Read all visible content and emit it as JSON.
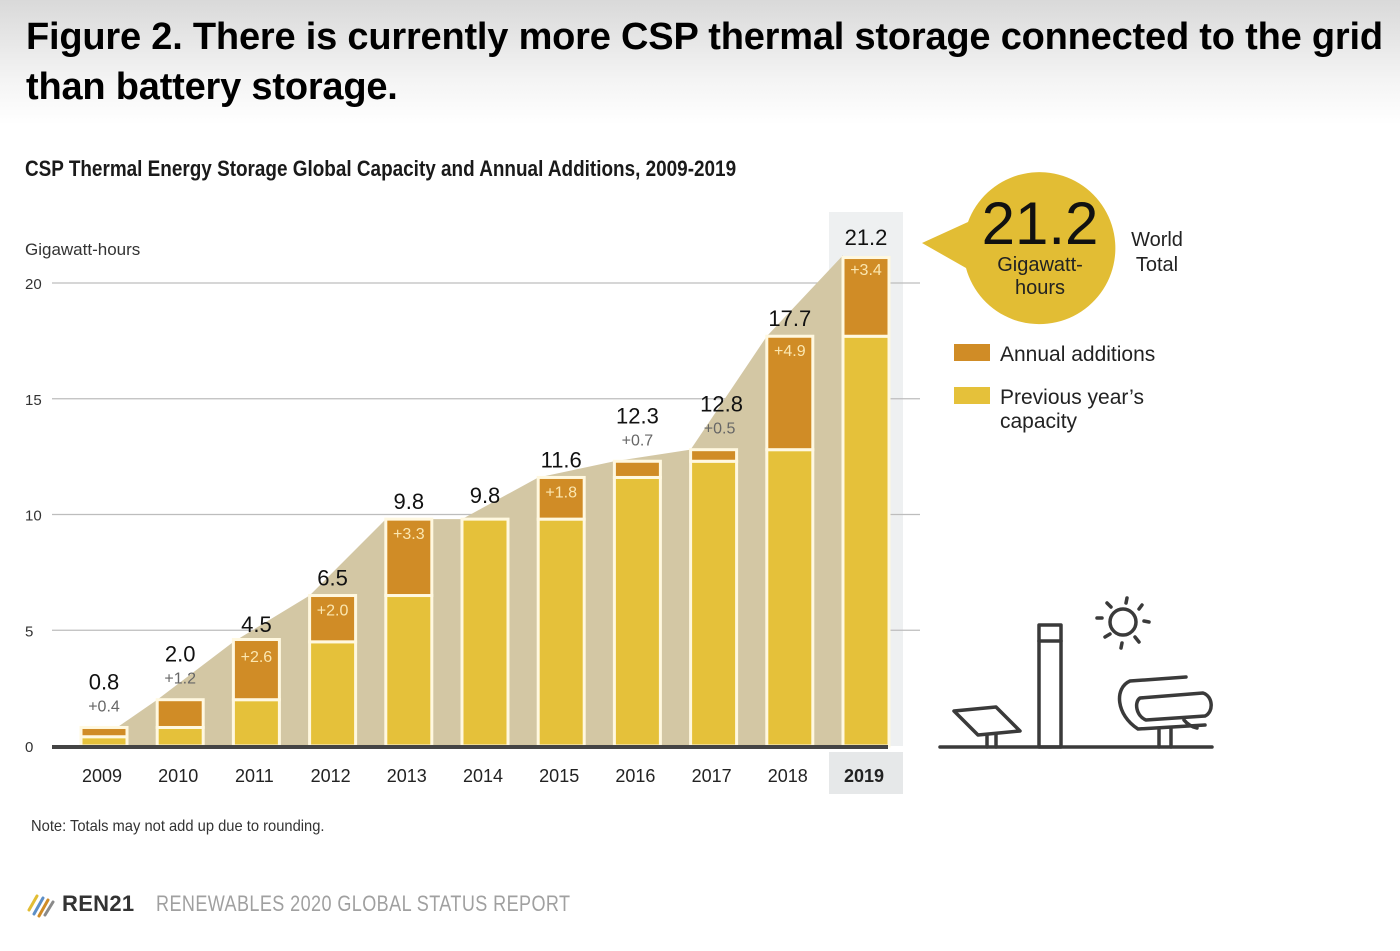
{
  "figure_title": "Figure 2. There is currently more CSP thermal storage connected to the grid than battery storage.",
  "note": "Note: Totals may not add up due to rounding.",
  "footer": {
    "logo_icon": "ren21-stripes-logo-icon",
    "brand": "REN21",
    "report": "RENEWABLES 2020 GLOBAL STATUS REPORT"
  },
  "callout": {
    "value": "21.2",
    "unit_line1": "Gigawatt-",
    "unit_line2": "hours",
    "label_line1": "World",
    "label_line2": "Total"
  },
  "illustration": {
    "icons": [
      "solar-panel-icon",
      "solar-tower-icon",
      "sun-icon",
      "parabolic-trough-icon"
    ]
  },
  "colors": {
    "additions": "#d08c26",
    "previous": "#e5c13a",
    "trend_area": "#d3c7a4",
    "callout_bubble": "#e2bd34",
    "highlight_column": "#eef0f1",
    "axis": "#444444",
    "grid": "#bdbdbd"
  },
  "chart_data": {
    "type": "bar",
    "stacked": true,
    "title": "CSP Thermal Energy Storage Global Capacity and Annual Additions, 2009-2019",
    "xlabel": "",
    "ylabel": "Gigawatt-hours",
    "ylim": [
      0,
      20
    ],
    "yticks": [
      0,
      5,
      10,
      15,
      20
    ],
    "grid": true,
    "legend_position": "right",
    "highlighted_category": "2019",
    "categories": [
      "2009",
      "2010",
      "2011",
      "2012",
      "2013",
      "2014",
      "2015",
      "2016",
      "2017",
      "2018",
      "2019"
    ],
    "series": [
      {
        "name": "Previous year's capacity",
        "values": [
          0.4,
          0.8,
          2.0,
          4.5,
          6.5,
          9.8,
          9.8,
          11.6,
          12.3,
          12.8,
          17.7
        ]
      },
      {
        "name": "Annual additions",
        "values": [
          0.4,
          1.2,
          2.6,
          2.0,
          3.3,
          0.0,
          1.8,
          0.7,
          0.5,
          4.9,
          3.4
        ]
      }
    ],
    "totals": [
      0.8,
      2.0,
      4.5,
      6.5,
      9.8,
      9.8,
      11.6,
      12.3,
      12.8,
      17.7,
      21.2
    ],
    "total_labels": [
      "0.8",
      "2.0",
      "4.5",
      "6.5",
      "9.8",
      "9.8",
      "11.6",
      "12.3",
      "12.8",
      "17.7",
      "21.2"
    ],
    "addition_labels": [
      "+0.4",
      "+1.2",
      "+2.6",
      "+2.0",
      "+3.3",
      "",
      "+1.8",
      "+0.7",
      "+0.5",
      "+4.9",
      "+3.4"
    ],
    "legend": [
      "Annual additions",
      "Previous year's capacity"
    ]
  }
}
